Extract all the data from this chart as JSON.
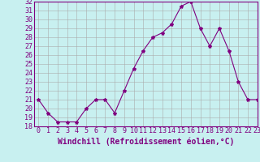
{
  "x": [
    0,
    1,
    2,
    3,
    4,
    5,
    6,
    7,
    8,
    9,
    10,
    11,
    12,
    13,
    14,
    15,
    16,
    17,
    18,
    19,
    20,
    21,
    22,
    23
  ],
  "y": [
    21.0,
    19.5,
    18.5,
    18.5,
    18.5,
    20.0,
    21.0,
    21.0,
    19.5,
    22.0,
    24.5,
    26.5,
    28.0,
    28.5,
    29.5,
    31.5,
    32.0,
    29.0,
    27.0,
    29.0,
    26.5,
    23.0,
    21.0,
    21.0
  ],
  "line_color": "#800080",
  "marker": "*",
  "marker_size": 3,
  "bg_color": "#c8f0f0",
  "grid_color": "#aaaaaa",
  "xlabel": "Windchill (Refroidissement éolien,°C)",
  "ylim": [
    18,
    32
  ],
  "xlim": [
    -0.5,
    23
  ],
  "yticks": [
    18,
    19,
    20,
    21,
    22,
    23,
    24,
    25,
    26,
    27,
    28,
    29,
    30,
    31,
    32
  ],
  "xticks": [
    0,
    1,
    2,
    3,
    4,
    5,
    6,
    7,
    8,
    9,
    10,
    11,
    12,
    13,
    14,
    15,
    16,
    17,
    18,
    19,
    20,
    21,
    22,
    23
  ],
  "xlabel_fontsize": 7,
  "tick_fontsize": 6,
  "tick_color": "#800080",
  "line_width": 0.8
}
